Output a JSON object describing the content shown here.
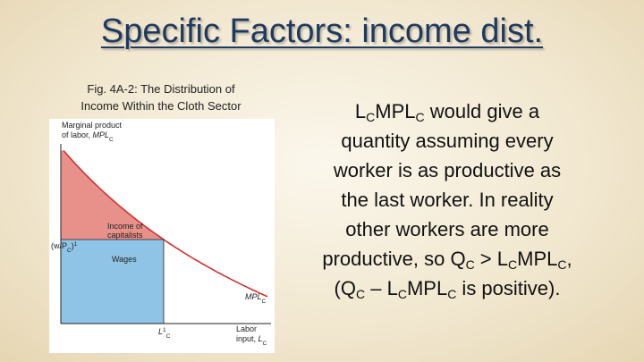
{
  "title": "Specific Factors: income dist.",
  "caption": [
    "Fig. 4A-2: The Distribution of",
    "Income Within the Cloth Sector"
  ],
  "figure": {
    "y_label": [
      "Marginal product",
      [
        {
          "text": "of labor, "
        },
        {
          "italic": "MPL"
        },
        {
          "sub": "C"
        }
      ]
    ],
    "capital_label": [
      "Income of",
      "capitalists"
    ],
    "wages_label": "Wages",
    "wage_label": [
      {
        "text": "(w/P"
      },
      {
        "sub": "C"
      },
      {
        "text": ")"
      },
      {
        "sup": "1"
      }
    ],
    "curve_label": [
      {
        "italic": "MPL"
      },
      {
        "sub": "C"
      }
    ],
    "labor_label": [
      {
        "italic": "L"
      },
      {
        "sup": "1"
      },
      {
        "sub": "C"
      }
    ],
    "x_label": [
      "Labor",
      [
        {
          "text": "input, "
        },
        {
          "italic": "L"
        },
        {
          "sub": "C"
        }
      ]
    ]
  },
  "body": [
    [
      {
        "text": "L"
      },
      {
        "sub": "C"
      },
      {
        "text": "MPL"
      },
      {
        "sub": "C"
      },
      {
        "text": " would give a"
      }
    ],
    [
      {
        "text": "quantity assuming every"
      }
    ],
    [
      {
        "text": "worker is as productive as"
      }
    ],
    [
      {
        "text": "the last worker.  In reality"
      }
    ],
    [
      {
        "text": "other workers are more"
      }
    ],
    [
      {
        "text": "productive, so Q"
      },
      {
        "sub": "C"
      },
      {
        "text": " > L"
      },
      {
        "sub": "C"
      },
      {
        "text": "MPL"
      },
      {
        "sub": "C"
      },
      {
        "text": ","
      }
    ],
    [
      {
        "text": "(Q"
      },
      {
        "sub": "C"
      },
      {
        "text": " – L"
      },
      {
        "sub": "C"
      },
      {
        "text": "MPL"
      },
      {
        "sub": "C"
      },
      {
        "text": " is positive)."
      }
    ]
  ]
}
